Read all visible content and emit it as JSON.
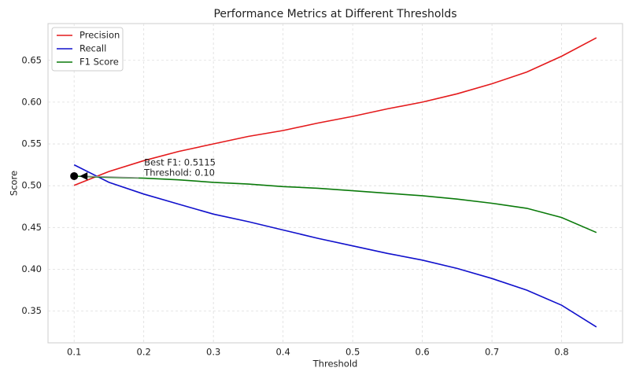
{
  "chart_data": {
    "type": "line",
    "title": "Performance Metrics at Different Thresholds",
    "xlabel": "Threshold",
    "ylabel": "Score",
    "x": [
      0.1,
      0.15,
      0.2,
      0.25,
      0.3,
      0.35,
      0.4,
      0.45,
      0.5,
      0.55,
      0.6,
      0.65,
      0.7,
      0.75,
      0.8,
      0.85
    ],
    "series": [
      {
        "name": "Precision",
        "color": "#e41a1c",
        "values": [
          0.5005,
          0.517,
          0.53,
          0.541,
          0.55,
          0.559,
          0.566,
          0.575,
          0.583,
          0.592,
          0.6,
          0.61,
          0.622,
          0.636,
          0.655,
          0.677
        ]
      },
      {
        "name": "Recall",
        "color": "#1010cc",
        "values": [
          0.525,
          0.504,
          0.49,
          0.478,
          0.466,
          0.457,
          0.447,
          0.437,
          0.428,
          0.419,
          0.411,
          0.401,
          0.389,
          0.375,
          0.357,
          0.331
        ]
      },
      {
        "name": "F1 Score",
        "color": "#0a7a0a",
        "values": [
          0.5115,
          0.51,
          0.509,
          0.507,
          0.504,
          0.502,
          0.499,
          0.497,
          0.494,
          0.491,
          0.488,
          0.484,
          0.479,
          0.473,
          0.462,
          0.444
        ]
      }
    ],
    "xlim": [
      0.0625,
      0.8875
    ],
    "ylim": [
      0.312,
      0.694
    ],
    "xticks": [
      0.1,
      0.2,
      0.3,
      0.4,
      0.5,
      0.6,
      0.7,
      0.8
    ],
    "yticks": [
      0.35,
      {
        "value": 0.4,
        "label": "0.40"
      },
      0.45,
      {
        "value": 0.5,
        "label": "0.50"
      },
      0.55,
      {
        "value": 0.6,
        "label": "0.60"
      },
      0.65
    ],
    "grid": true,
    "legend": "upper left",
    "annotation": {
      "lines": [
        "Best F1: 0.5115",
        "Threshold: 0.10"
      ],
      "point": {
        "x": 0.1,
        "y": 0.5115
      }
    }
  }
}
